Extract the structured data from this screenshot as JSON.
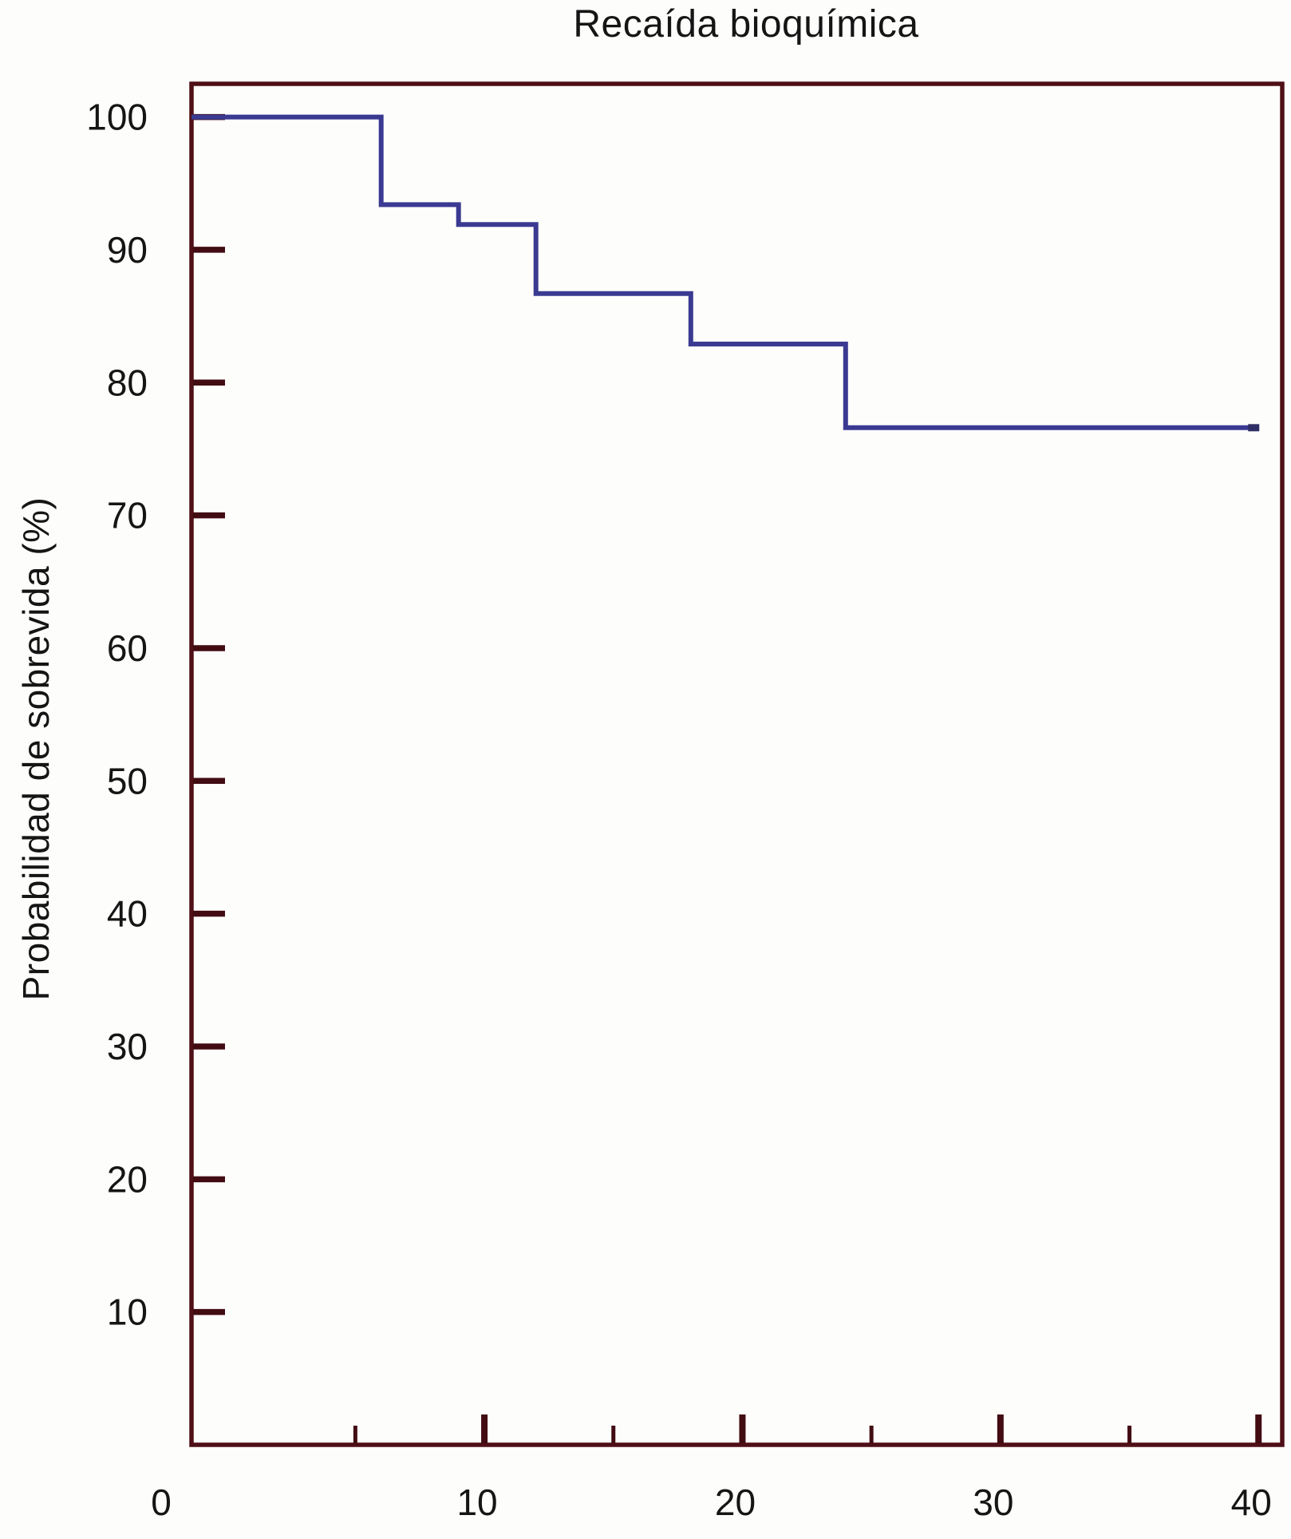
{
  "chart_data": {
    "type": "line",
    "subtype": "kaplan-meier-step",
    "title": "Recaída bioquímica",
    "xlabel": "",
    "ylabel": "Probabilidad de sobrevida (%)",
    "xlim": [
      -1.35,
      40.92
    ],
    "ylim": [
      0,
      102.5
    ],
    "grid": false,
    "legend_position": "none",
    "x_major_ticks": [
      10,
      20,
      30,
      40
    ],
    "x_minor_ticks": [
      5,
      15,
      25,
      35
    ],
    "x_tick_labels": [
      {
        "value": 0,
        "label": "0"
      },
      {
        "value": 10,
        "label": "10"
      },
      {
        "value": 20,
        "label": "20"
      },
      {
        "value": 30,
        "label": "30"
      },
      {
        "value": 40,
        "label": "40"
      }
    ],
    "y_ticks": [
      100,
      90,
      80,
      70,
      60,
      50,
      40,
      30,
      20,
      10
    ],
    "y_tick_labels": [
      "100",
      "90",
      "80",
      "70",
      "60",
      "50",
      "40",
      "30",
      "20",
      "10"
    ],
    "series": [
      {
        "color": "#3b3a92",
        "step_points": [
          {
            "t": 0,
            "s": 100
          },
          {
            "t": 6,
            "s": 93.4
          },
          {
            "t": 9,
            "s": 91.9
          },
          {
            "t": 12,
            "s": 86.7
          },
          {
            "t": 18,
            "s": 82.9
          },
          {
            "t": 24,
            "s": 76.6
          },
          {
            "t": 40,
            "s": 76.6
          }
        ]
      }
    ]
  },
  "colors": {
    "frame": "#4f0f16",
    "tick": "#420c12",
    "curve": "#3b3a92",
    "curve_end_cap": "#2f2e66",
    "text": "#151515",
    "background": "#fdfdfb"
  }
}
